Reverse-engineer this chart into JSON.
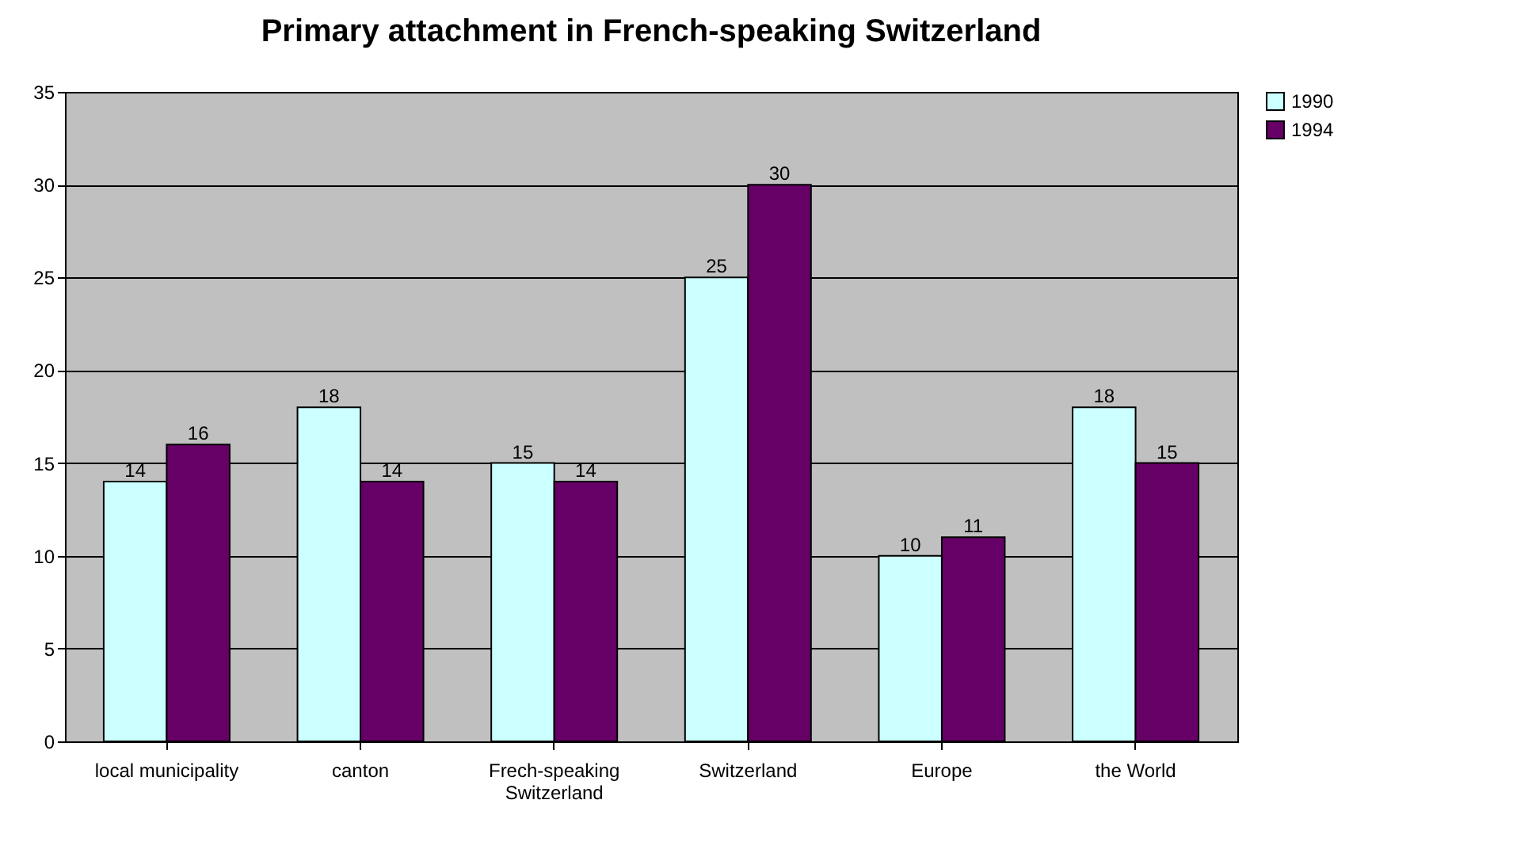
{
  "chart_data": {
    "type": "bar",
    "title": "Primary attachment in French-speaking Switzerland",
    "categories": [
      "local municipality",
      "canton",
      "Frech-speaking Switzerland",
      "Switzerland",
      "Europe",
      "the World"
    ],
    "series": [
      {
        "name": "1990",
        "color": "#ccffff",
        "values": [
          14,
          18,
          15,
          25,
          10,
          18
        ]
      },
      {
        "name": "1994",
        "color": "#660066",
        "values": [
          16,
          14,
          14,
          30,
          11,
          15
        ]
      }
    ],
    "ylim": [
      0,
      35
    ],
    "yticks": [
      0,
      5,
      10,
      15,
      20,
      25,
      30,
      35
    ],
    "grid": "y",
    "legend": "right",
    "data_labels": true
  }
}
